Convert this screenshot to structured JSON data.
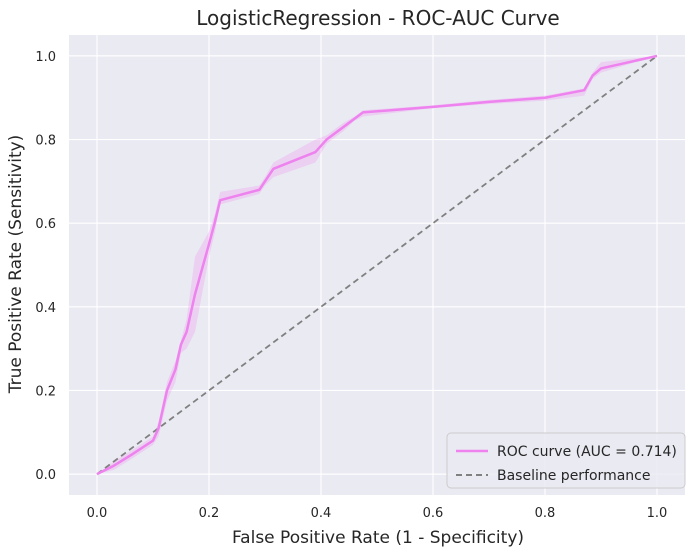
{
  "chart_data": {
    "type": "line",
    "title": "LogisticRegression - ROC-AUC Curve",
    "xlabel": "False Positive Rate (1 - Specificity)",
    "ylabel": "True Positive Rate (Sensitivity)",
    "xlim": [
      -0.05,
      1.05
    ],
    "ylim": [
      -0.05,
      1.05
    ],
    "xticks": [
      0.0,
      0.2,
      0.4,
      0.6,
      0.8,
      1.0
    ],
    "yticks": [
      0.0,
      0.2,
      0.4,
      0.6,
      0.8,
      1.0
    ],
    "tick_labels_x": [
      "0.0",
      "0.2",
      "0.4",
      "0.6",
      "0.8",
      "1.0"
    ],
    "tick_labels_y": [
      "0.0",
      "0.2",
      "0.4",
      "0.6",
      "0.8",
      "1.0"
    ],
    "grid": true,
    "legend_position": "lower-right",
    "series": [
      {
        "name": "ROC curve (AUC = 0.714)",
        "color": "#ee82ee",
        "band_color": "#ee82ee",
        "x": [
          0.0,
          0.03,
          0.06,
          0.1,
          0.11,
          0.125,
          0.14,
          0.15,
          0.16,
          0.175,
          0.2,
          0.21,
          0.22,
          0.29,
          0.3,
          0.315,
          0.39,
          0.41,
          0.44,
          0.46,
          0.475,
          0.6,
          0.7,
          0.8,
          0.87,
          0.885,
          0.9,
          1.0
        ],
        "y": [
          0.0,
          0.02,
          0.045,
          0.08,
          0.11,
          0.2,
          0.25,
          0.31,
          0.34,
          0.43,
          0.55,
          0.6,
          0.655,
          0.68,
          0.7,
          0.73,
          0.77,
          0.8,
          0.83,
          0.85,
          0.865,
          0.878,
          0.89,
          0.9,
          0.918,
          0.953,
          0.97,
          1.0
        ],
        "y_lower": [
          0.0,
          0.01,
          0.035,
          0.07,
          0.09,
          0.175,
          0.22,
          0.29,
          0.3,
          0.34,
          0.52,
          0.575,
          0.645,
          0.67,
          0.69,
          0.71,
          0.745,
          0.79,
          0.82,
          0.845,
          0.855,
          0.875,
          0.885,
          0.893,
          0.905,
          0.945,
          0.96,
          1.0
        ],
        "y_upper": [
          0.0,
          0.03,
          0.055,
          0.09,
          0.125,
          0.22,
          0.27,
          0.32,
          0.37,
          0.52,
          0.58,
          0.62,
          0.675,
          0.69,
          0.71,
          0.745,
          0.8,
          0.81,
          0.84,
          0.855,
          0.87,
          0.882,
          0.895,
          0.905,
          0.922,
          0.96,
          0.985,
          1.0
        ]
      },
      {
        "name": "Baseline performance",
        "color": "#808080",
        "dashed": true,
        "x": [
          0.0,
          1.0
        ],
        "y": [
          0.0,
          1.0
        ]
      }
    ]
  }
}
